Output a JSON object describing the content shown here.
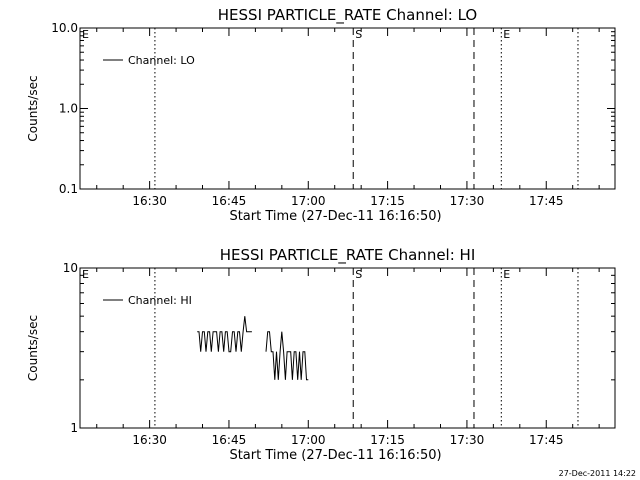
{
  "chart_data": [
    {
      "type": "line",
      "title": "HESSI PARTICLE_RATE Channel: LO",
      "xlabel": "Start Time (27-Dec-11 16:16:50)",
      "ylabel": "Counts/sec",
      "yscale": "log",
      "xlim": [
        "16:16:50",
        "17:58:00"
      ],
      "ylim": [
        0.1,
        10.0
      ],
      "xticks": [
        "16:30",
        "16:45",
        "17:00",
        "17:15",
        "17:30",
        "17:45"
      ],
      "yticks": [
        "0.1",
        "1.0",
        "10.0"
      ],
      "legend_position": "top-left",
      "series": [
        {
          "name": "Channel: LO",
          "x": [],
          "y": []
        }
      ],
      "markers": [
        {
          "label": "E",
          "time": "16:16:50",
          "style": "dotted"
        },
        {
          "label": "",
          "time": "16:31:00",
          "style": "dotted"
        },
        {
          "label": "S",
          "time": "17:08:30",
          "style": "dashed"
        },
        {
          "label": "",
          "time": "17:31:20",
          "style": "dashed"
        },
        {
          "label": "E",
          "time": "17:36:30",
          "style": "dotted"
        },
        {
          "label": "",
          "time": "17:51:00",
          "style": "dotted"
        }
      ]
    },
    {
      "type": "line",
      "title": "HESSI PARTICLE_RATE Channel: HI",
      "xlabel": "Start Time (27-Dec-11 16:16:50)",
      "ylabel": "Counts/sec",
      "yscale": "log",
      "xlim": [
        "16:16:50",
        "17:58:00"
      ],
      "ylim": [
        1,
        10
      ],
      "xticks": [
        "16:30",
        "16:45",
        "17:00",
        "17:15",
        "17:30",
        "17:45"
      ],
      "yticks": [
        "1",
        "10"
      ],
      "legend_position": "top-left",
      "series": [
        {
          "name": "Channel: HI",
          "x": [
            "16:39:00",
            "16:39:20",
            "16:39:40",
            "16:40:00",
            "16:40:20",
            "16:40:40",
            "16:41:00",
            "16:41:20",
            "16:41:40",
            "16:42:00",
            "16:42:20",
            "16:42:40",
            "16:43:00",
            "16:43:20",
            "16:43:40",
            "16:44:00",
            "16:44:20",
            "16:44:40",
            "16:45:00",
            "16:45:20",
            "16:45:40",
            "16:46:00",
            "16:46:20",
            "16:46:40",
            "16:47:00",
            "16:47:20",
            "16:47:40",
            "16:48:00",
            "16:48:20",
            "16:48:40",
            "16:49:00",
            "16:49:20",
            "16:52:00",
            "16:52:20",
            "16:52:40",
            "16:53:00",
            "16:53:20",
            "16:53:40",
            "16:54:00",
            "16:54:20",
            "16:54:40",
            "16:55:00",
            "16:55:20",
            "16:55:40",
            "16:56:00",
            "16:56:20",
            "16:56:40",
            "16:57:00",
            "16:57:20",
            "16:57:40",
            "16:58:00",
            "16:58:20",
            "16:58:40",
            "16:59:00",
            "16:59:20",
            "16:59:40",
            "17:00:00"
          ],
          "y": [
            4,
            4,
            3,
            4,
            4,
            3,
            4,
            4,
            3,
            4,
            4,
            4,
            3,
            4,
            4,
            3,
            4,
            4,
            3,
            3,
            4,
            4,
            3,
            4,
            4,
            3,
            4,
            5,
            4,
            4,
            4,
            4,
            3,
            4,
            4,
            3,
            3,
            2,
            3,
            2,
            3,
            4,
            3,
            2,
            3,
            3,
            3,
            2,
            3,
            3,
            2,
            3,
            2,
            3,
            3,
            2,
            2
          ]
        }
      ],
      "markers": [
        {
          "label": "E",
          "time": "16:16:50",
          "style": "dotted"
        },
        {
          "label": "",
          "time": "16:31:00",
          "style": "dotted"
        },
        {
          "label": "S",
          "time": "17:08:30",
          "style": "dashed"
        },
        {
          "label": "",
          "time": "17:31:20",
          "style": "dashed"
        },
        {
          "label": "E",
          "time": "17:36:30",
          "style": "dotted"
        },
        {
          "label": "",
          "time": "17:51:00",
          "style": "dotted"
        }
      ]
    }
  ],
  "footer": {
    "timestamp": "27-Dec-2011 14:22"
  }
}
